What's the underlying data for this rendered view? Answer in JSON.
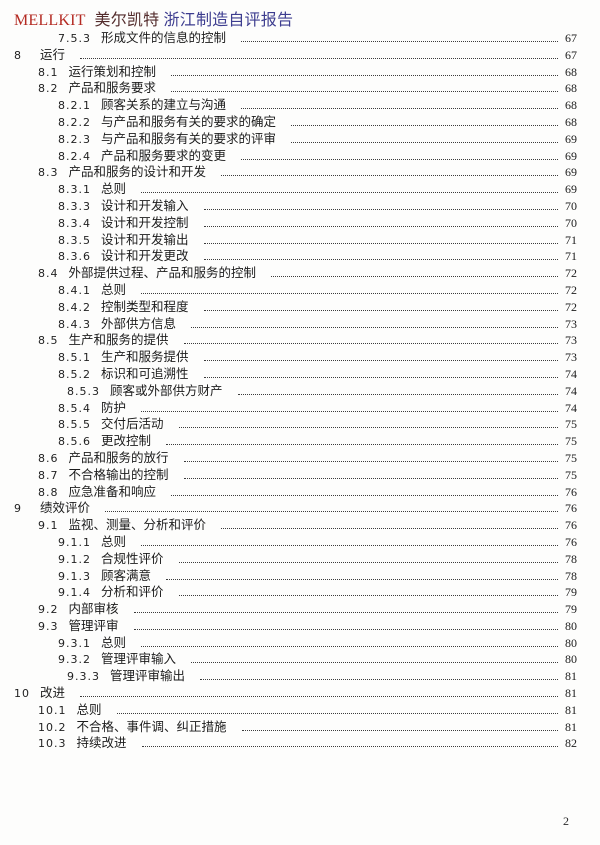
{
  "header": {
    "brand": "MELLKIT",
    "brand_cn": "美尔凯特",
    "title_rest": "浙江制造自评报告",
    "colors": {
      "brand": "#b42a22",
      "brand_cn": "#532c2c",
      "title_rest": "#3d3d8f"
    }
  },
  "toc": {
    "entries": [
      {
        "num": "7.5.3",
        "label": "形成文件的信息的控制",
        "page": "67",
        "indent": 2
      },
      {
        "num": "8",
        "label": "运行",
        "page": "67",
        "indent": 0
      },
      {
        "num": "8.1",
        "label": "运行策划和控制",
        "page": "68",
        "indent": 1
      },
      {
        "num": "8.2",
        "label": "产品和服务要求",
        "page": "68",
        "indent": 1
      },
      {
        "num": "8.2.1",
        "label": "顾客关系的建立与沟通",
        "page": "68",
        "indent": 2
      },
      {
        "num": "8.2.2",
        "label": "与产品和服务有关的要求的确定",
        "page": "68",
        "indent": 2
      },
      {
        "num": "8.2.3",
        "label": "与产品和服务有关的要求的评审",
        "page": "69",
        "indent": 2
      },
      {
        "num": "8.2.4",
        "label": "产品和服务要求的变更",
        "page": "69",
        "indent": 2
      },
      {
        "num": "8.3",
        "label": "产品和服务的设计和开发",
        "page": "69",
        "indent": 1
      },
      {
        "num": "8.3.1",
        "label": "总则",
        "page": "69",
        "indent": 2
      },
      {
        "num": "8.3.3",
        "label": "设计和开发输入",
        "page": "70",
        "indent": 2
      },
      {
        "num": "8.3.4",
        "label": "设计和开发控制",
        "page": "70",
        "indent": 2
      },
      {
        "num": "8.3.5",
        "label": "设计和开发输出",
        "page": "71",
        "indent": 2
      },
      {
        "num": "8.3.6",
        "label": "设计和开发更改",
        "page": "71",
        "indent": 2
      },
      {
        "num": "8.4",
        "label": "外部提供过程、产品和服务的控制",
        "page": "72",
        "indent": 1
      },
      {
        "num": "8.4.1",
        "label": "总则",
        "page": "72",
        "indent": 2
      },
      {
        "num": "8.4.2",
        "label": "控制类型和程度",
        "page": "72",
        "indent": 2
      },
      {
        "num": "8.4.3",
        "label": "外部供方信息",
        "page": "73",
        "indent": 2
      },
      {
        "num": "8.5",
        "label": "生产和服务的提供",
        "page": "73",
        "indent": 1
      },
      {
        "num": "8.5.1",
        "label": "生产和服务提供",
        "page": "73",
        "indent": 2
      },
      {
        "num": "8.5.2",
        "label": "标识和可追溯性",
        "page": "74",
        "indent": 2
      },
      {
        "num": "8.5.3",
        "label": "顾客或外部供方财产",
        "page": "74",
        "indent": 3
      },
      {
        "num": "8.5.4",
        "label": "防护",
        "page": "74",
        "indent": 2
      },
      {
        "num": "8.5.5",
        "label": "交付后活动",
        "page": "75",
        "indent": 2
      },
      {
        "num": "8.5.6",
        "label": "更改控制",
        "page": "75",
        "indent": 2
      },
      {
        "num": "8.6",
        "label": "产品和服务的放行",
        "page": "75",
        "indent": 1
      },
      {
        "num": "8.7",
        "label": "不合格输出的控制",
        "page": "75",
        "indent": 1
      },
      {
        "num": "8.8",
        "label": "应急准备和响应",
        "page": "76",
        "indent": 1
      },
      {
        "num": "9",
        "label": "绩效评价",
        "page": "76",
        "indent": 0
      },
      {
        "num": "9.1",
        "label": "监视、测量、分析和评价",
        "page": "76",
        "indent": 1
      },
      {
        "num": "9.1.1",
        "label": "总则",
        "page": "76",
        "indent": 2
      },
      {
        "num": "9.1.2",
        "label": "合规性评价",
        "page": "78",
        "indent": 2
      },
      {
        "num": "9.1.3",
        "label": "顾客满意",
        "page": "78",
        "indent": 2
      },
      {
        "num": "9.1.4",
        "label": "分析和评价",
        "page": "79",
        "indent": 2
      },
      {
        "num": "9.2",
        "label": "内部审核",
        "page": "79",
        "indent": 1
      },
      {
        "num": "9.3",
        "label": "管理评审",
        "page": "80",
        "indent": 1
      },
      {
        "num": "9.3.1",
        "label": "总则",
        "page": "80",
        "indent": 2
      },
      {
        "num": "9.3.2",
        "label": "管理评审输入",
        "page": "80",
        "indent": 2
      },
      {
        "num": "9.3.3",
        "label": "管理评审输出",
        "page": "81",
        "indent": 3
      },
      {
        "num": "10",
        "label": "改进",
        "page": "81",
        "indent": 0
      },
      {
        "num": "10.1",
        "label": "总则",
        "page": "81",
        "indent": 1
      },
      {
        "num": "10.2",
        "label": "不合格、事件调、纠正措施",
        "page": "81",
        "indent": 1
      },
      {
        "num": "10.3",
        "label": "持续改进",
        "page": "82",
        "indent": 1
      }
    ]
  },
  "footer": {
    "page_number": "2"
  }
}
